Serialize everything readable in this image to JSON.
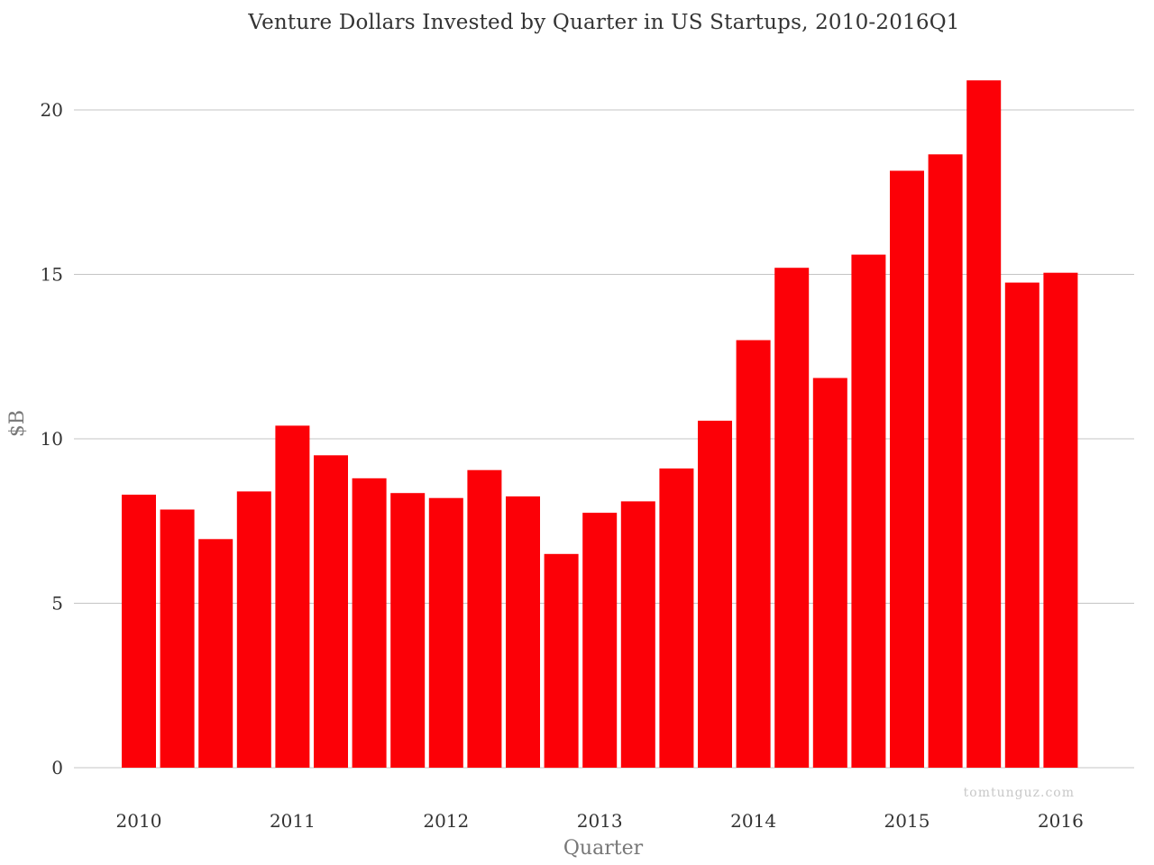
{
  "chart_data": {
    "type": "bar",
    "title": "Venture Dollars Invested by Quarter in US Startups, 2010-2016Q1",
    "xlabel": "Quarter",
    "ylabel": "$B",
    "ylim": [
      0,
      21.5
    ],
    "yticks": [
      0,
      5,
      10,
      15,
      20
    ],
    "grid": true,
    "bar_color": "#fc0007",
    "categories": [
      "2010Q1",
      "2010Q2",
      "2010Q3",
      "2010Q4",
      "2011Q1",
      "2011Q2",
      "2011Q3",
      "2011Q4",
      "2012Q1",
      "2012Q2",
      "2012Q3",
      "2012Q4",
      "2013Q1",
      "2013Q2",
      "2013Q3",
      "2013Q4",
      "2014Q1",
      "2014Q2",
      "2014Q3",
      "2014Q4",
      "2015Q1",
      "2015Q2",
      "2015Q3",
      "2015Q4",
      "2016Q1"
    ],
    "values": [
      8.3,
      7.85,
      6.95,
      8.4,
      10.4,
      9.5,
      8.8,
      8.35,
      8.2,
      9.05,
      8.25,
      6.5,
      7.75,
      8.1,
      9.1,
      10.55,
      13.0,
      15.2,
      11.85,
      15.6,
      18.15,
      18.65,
      20.9,
      14.75,
      15.05
    ],
    "xtick_labels": [
      "2010",
      "2011",
      "2012",
      "2013",
      "2014",
      "2015",
      "2016"
    ],
    "watermark": "tomtunguz.com"
  }
}
